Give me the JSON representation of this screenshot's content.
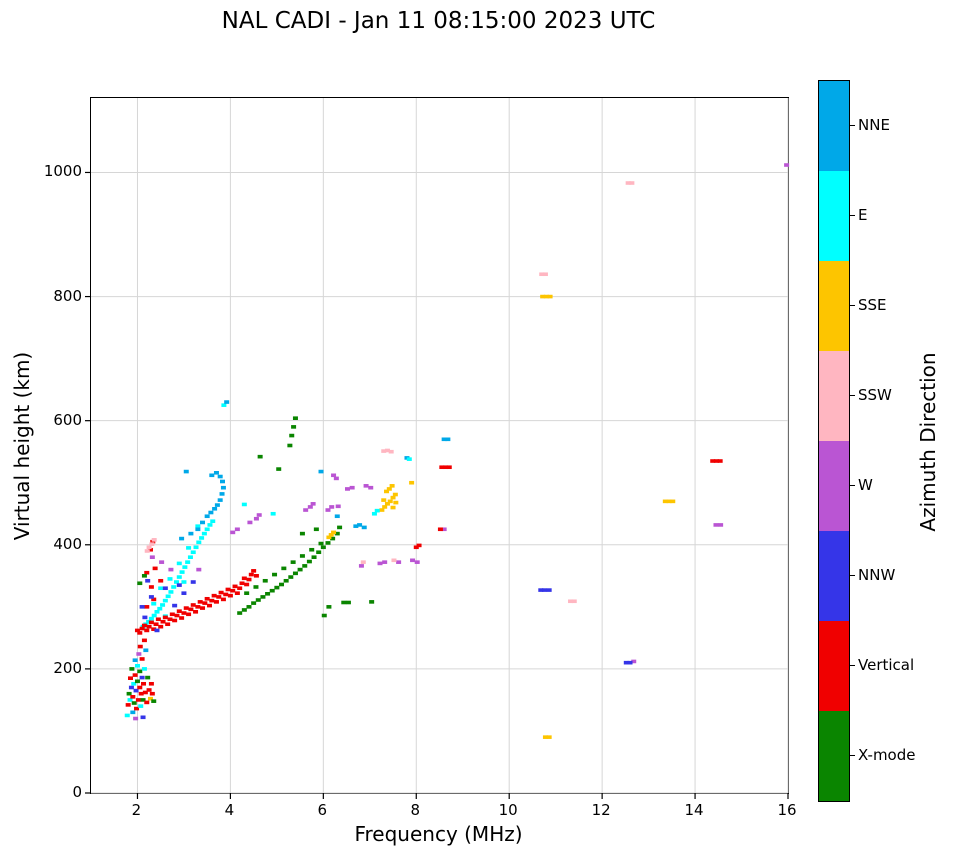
{
  "chart_data": {
    "type": "scatter",
    "title": "NAL CADI - Jan 11 08:15:00 2023 UTC",
    "xlabel": "Frequency (MHz)",
    "ylabel": "Virtual height (km)",
    "colorbar_label": "Azimuth Direction",
    "xlim": [
      1,
      16
    ],
    "ylim": [
      0,
      1120
    ],
    "x_ticks": [
      2,
      4,
      6,
      8,
      10,
      12,
      14,
      16
    ],
    "y_ticks": [
      0,
      200,
      400,
      600,
      800,
      1000
    ],
    "grid": true,
    "legend_position": "right-colorbar",
    "categories": [
      {
        "name": "NNE",
        "color": "#00a8e8"
      },
      {
        "name": "E",
        "color": "#00ffff"
      },
      {
        "name": "SSE",
        "color": "#fdc500"
      },
      {
        "name": "SSW",
        "color": "#ffb6c1"
      },
      {
        "name": "W",
        "color": "#ba55d3"
      },
      {
        "name": "NNW",
        "color": "#3535e8"
      },
      {
        "name": "Vertical",
        "color": "#f00000"
      },
      {
        "name": "X-mode",
        "color": "#0a8500"
      }
    ],
    "points": [
      [
        1.78,
        125,
        1
      ],
      [
        1.8,
        142,
        6
      ],
      [
        1.82,
        160,
        7
      ],
      [
        1.84,
        150,
        1
      ],
      [
        1.85,
        185,
        6
      ],
      [
        1.87,
        170,
        5
      ],
      [
        1.88,
        200,
        7
      ],
      [
        1.9,
        130,
        0
      ],
      [
        1.9,
        155,
        6
      ],
      [
        1.92,
        176,
        1
      ],
      [
        1.93,
        145,
        7
      ],
      [
        1.95,
        190,
        6
      ],
      [
        1.95,
        214,
        0
      ],
      [
        1.97,
        165,
        5
      ],
      [
        1.98,
        136,
        6
      ],
      [
        2.0,
        180,
        7
      ],
      [
        2.0,
        205,
        1
      ],
      [
        2.02,
        150,
        6
      ],
      [
        2.03,
        224,
        4
      ],
      [
        2.05,
        170,
        6
      ],
      [
        2.05,
        196,
        7
      ],
      [
        2.07,
        140,
        1
      ],
      [
        2.08,
        160,
        6
      ],
      [
        2.1,
        186,
        5
      ],
      [
        2.1,
        216,
        6
      ],
      [
        2.12,
        150,
        7
      ],
      [
        2.13,
        176,
        6
      ],
      [
        2.15,
        200,
        1
      ],
      [
        2.17,
        162,
        6
      ],
      [
        2.18,
        230,
        0
      ],
      [
        2.2,
        146,
        6
      ],
      [
        2.22,
        186,
        7
      ],
      [
        2.25,
        166,
        6
      ],
      [
        2.28,
        152,
        2
      ],
      [
        2.3,
        176,
        6
      ],
      [
        2.12,
        122,
        5
      ],
      [
        1.96,
        120,
        4
      ],
      [
        2.06,
        236,
        6
      ],
      [
        2.32,
        160,
        6
      ],
      [
        2.35,
        148,
        7
      ],
      [
        2.12,
        268,
        1
      ],
      [
        2.18,
        272,
        1
      ],
      [
        2.24,
        276,
        1
      ],
      [
        2.3,
        281,
        1
      ],
      [
        2.36,
        286,
        1
      ],
      [
        2.42,
        292,
        1
      ],
      [
        2.48,
        297,
        1
      ],
      [
        2.54,
        303,
        1
      ],
      [
        2.6,
        310,
        1
      ],
      [
        2.66,
        317,
        1
      ],
      [
        2.72,
        324,
        1
      ],
      [
        2.78,
        332,
        1
      ],
      [
        2.84,
        340,
        1
      ],
      [
        2.9,
        348,
        1
      ],
      [
        2.96,
        356,
        1
      ],
      [
        3.02,
        364,
        1
      ],
      [
        3.08,
        372,
        1
      ],
      [
        3.14,
        380,
        1
      ],
      [
        3.2,
        388,
        1
      ],
      [
        3.26,
        396,
        1
      ],
      [
        3.32,
        404,
        1
      ],
      [
        3.38,
        411,
        1
      ],
      [
        3.44,
        418,
        1
      ],
      [
        3.5,
        425,
        1
      ],
      [
        3.56,
        432,
        1
      ],
      [
        3.62,
        438,
        1
      ],
      [
        2.5,
        330,
        1
      ],
      [
        2.7,
        345,
        1
      ],
      [
        2.9,
        370,
        1
      ],
      [
        3.1,
        395,
        1
      ],
      [
        2.35,
        305,
        1
      ],
      [
        2.6,
        285,
        1
      ],
      [
        3.3,
        430,
        1
      ],
      [
        3.0,
        340,
        1
      ],
      [
        3.3,
        425,
        0
      ],
      [
        3.4,
        436,
        0
      ],
      [
        3.5,
        446,
        0
      ],
      [
        3.58,
        452,
        0
      ],
      [
        3.66,
        458,
        0
      ],
      [
        3.72,
        464,
        0
      ],
      [
        3.78,
        472,
        0
      ],
      [
        3.82,
        482,
        0
      ],
      [
        3.85,
        492,
        0
      ],
      [
        3.83,
        502,
        0
      ],
      [
        3.78,
        510,
        0
      ],
      [
        3.7,
        516,
        0
      ],
      [
        3.6,
        512,
        0
      ],
      [
        3.05,
        518,
        0
      ],
      [
        3.86,
        625,
        1
      ],
      [
        3.92,
        630,
        0
      ],
      [
        2.95,
        410,
        0
      ],
      [
        3.15,
        418,
        0
      ],
      [
        2.0,
        262,
        6
      ],
      [
        2.05,
        258,
        6
      ],
      [
        2.1,
        265,
        6
      ],
      [
        2.15,
        270,
        6
      ],
      [
        2.2,
        262,
        6
      ],
      [
        2.25,
        268,
        6
      ],
      [
        2.3,
        275,
        6
      ],
      [
        2.35,
        264,
        6
      ],
      [
        2.4,
        272,
        6
      ],
      [
        2.45,
        280,
        6
      ],
      [
        2.5,
        268,
        6
      ],
      [
        2.55,
        276,
        6
      ],
      [
        2.6,
        283,
        6
      ],
      [
        2.65,
        272,
        6
      ],
      [
        2.7,
        280,
        6
      ],
      [
        2.75,
        288,
        6
      ],
      [
        2.8,
        278,
        6
      ],
      [
        2.85,
        286,
        6
      ],
      [
        2.9,
        293,
        6
      ],
      [
        2.95,
        282,
        6
      ],
      [
        3.0,
        290,
        6
      ],
      [
        3.05,
        298,
        6
      ],
      [
        3.1,
        288,
        6
      ],
      [
        3.15,
        296,
        6
      ],
      [
        3.2,
        303,
        6
      ],
      [
        3.25,
        292,
        6
      ],
      [
        3.3,
        300,
        6
      ],
      [
        3.35,
        308,
        6
      ],
      [
        3.4,
        298,
        6
      ],
      [
        3.45,
        306,
        6
      ],
      [
        3.5,
        313,
        6
      ],
      [
        3.55,
        302,
        6
      ],
      [
        3.6,
        310,
        6
      ],
      [
        3.65,
        318,
        6
      ],
      [
        3.7,
        308,
        6
      ],
      [
        3.75,
        316,
        6
      ],
      [
        3.8,
        323,
        6
      ],
      [
        3.85,
        312,
        6
      ],
      [
        3.9,
        320,
        6
      ],
      [
        3.95,
        328,
        6
      ],
      [
        4.0,
        318,
        6
      ],
      [
        4.05,
        326,
        6
      ],
      [
        4.1,
        333,
        6
      ],
      [
        4.15,
        322,
        6
      ],
      [
        4.2,
        330,
        6
      ],
      [
        4.25,
        338,
        6
      ],
      [
        4.3,
        346,
        6
      ],
      [
        4.35,
        336,
        6
      ],
      [
        4.4,
        344,
        6
      ],
      [
        4.45,
        352,
        6
      ],
      [
        2.2,
        300,
        6
      ],
      [
        2.35,
        312,
        6
      ],
      [
        2.3,
        332,
        6
      ],
      [
        2.5,
        342,
        6
      ],
      [
        2.2,
        355,
        6
      ],
      [
        2.38,
        362,
        6
      ],
      [
        2.28,
        392,
        6
      ],
      [
        2.33,
        405,
        6
      ],
      [
        2.15,
        246,
        6
      ],
      [
        4.5,
        358,
        6
      ],
      [
        4.56,
        350,
        6
      ],
      [
        2.1,
        300,
        5
      ],
      [
        2.3,
        316,
        5
      ],
      [
        2.6,
        330,
        5
      ],
      [
        2.22,
        342,
        5
      ],
      [
        2.8,
        302,
        5
      ],
      [
        3.0,
        322,
        5
      ],
      [
        2.42,
        262,
        5
      ],
      [
        2.16,
        283,
        5
      ],
      [
        3.2,
        340,
        5
      ],
      [
        2.9,
        335,
        5
      ],
      [
        2.32,
        380,
        4
      ],
      [
        2.52,
        372,
        4
      ],
      [
        3.32,
        360,
        4
      ],
      [
        2.72,
        360,
        4
      ],
      [
        4.42,
        436,
        4
      ],
      [
        4.56,
        442,
        4
      ],
      [
        4.62,
        448,
        4
      ],
      [
        4.05,
        420,
        4
      ],
      [
        4.15,
        425,
        4
      ],
      [
        2.25,
        396,
        3
      ],
      [
        2.31,
        401,
        3
      ],
      [
        2.36,
        408,
        3
      ],
      [
        2.21,
        390,
        3
      ],
      [
        4.2,
        290,
        7
      ],
      [
        4.3,
        295,
        7
      ],
      [
        4.4,
        300,
        7
      ],
      [
        4.5,
        306,
        7
      ],
      [
        4.6,
        311,
        7
      ],
      [
        4.7,
        316,
        7
      ],
      [
        4.8,
        321,
        7
      ],
      [
        4.9,
        326,
        7
      ],
      [
        5.0,
        331,
        7
      ],
      [
        5.1,
        336,
        7
      ],
      [
        5.2,
        342,
        7
      ],
      [
        5.3,
        348,
        7
      ],
      [
        5.4,
        354,
        7
      ],
      [
        5.5,
        360,
        7
      ],
      [
        5.6,
        366,
        7
      ],
      [
        5.7,
        373,
        7
      ],
      [
        5.8,
        380,
        7
      ],
      [
        5.9,
        388,
        7
      ],
      [
        6.0,
        396,
        7
      ],
      [
        6.1,
        403,
        7
      ],
      [
        6.2,
        410,
        7
      ],
      [
        6.3,
        418,
        7
      ],
      [
        4.55,
        332,
        7
      ],
      [
        4.75,
        342,
        7
      ],
      [
        4.95,
        352,
        7
      ],
      [
        5.15,
        362,
        7
      ],
      [
        5.35,
        372,
        7
      ],
      [
        5.55,
        382,
        7
      ],
      [
        5.75,
        392,
        7
      ],
      [
        5.95,
        402,
        7
      ],
      [
        4.35,
        322,
        7
      ],
      [
        5.28,
        560,
        7
      ],
      [
        5.32,
        576,
        7
      ],
      [
        5.36,
        590,
        7
      ],
      [
        5.4,
        604,
        7
      ],
      [
        4.64,
        542,
        7
      ],
      [
        5.04,
        522,
        7
      ],
      [
        6.44,
        307,
        7
      ],
      [
        6.54,
        307,
        7
      ],
      [
        6.02,
        286,
        7
      ],
      [
        7.04,
        308,
        7
      ],
      [
        6.12,
        300,
        7
      ],
      [
        2.05,
        338,
        7
      ],
      [
        2.15,
        350,
        7
      ],
      [
        5.55,
        418,
        7
      ],
      [
        5.85,
        425,
        7
      ],
      [
        6.35,
        428,
        7
      ],
      [
        5.62,
        456,
        4
      ],
      [
        5.72,
        461,
        4
      ],
      [
        5.78,
        466,
        4
      ],
      [
        6.1,
        456,
        4
      ],
      [
        6.18,
        461,
        4
      ],
      [
        6.22,
        512,
        4
      ],
      [
        6.28,
        507,
        4
      ],
      [
        6.52,
        490,
        4
      ],
      [
        6.62,
        492,
        4
      ],
      [
        6.92,
        495,
        4
      ],
      [
        7.02,
        492,
        4
      ],
      [
        6.32,
        462,
        4
      ],
      [
        7.22,
        370,
        4
      ],
      [
        7.32,
        372,
        4
      ],
      [
        6.82,
        366,
        4
      ],
      [
        7.62,
        372,
        4
      ],
      [
        7.92,
        375,
        4
      ],
      [
        8.02,
        372,
        4
      ],
      [
        8.6,
        425,
        4
      ],
      [
        14.45,
        432,
        4
      ],
      [
        14.55,
        432,
        4
      ],
      [
        15.97,
        1012,
        4
      ],
      [
        12.68,
        212,
        4
      ],
      [
        7.26,
        456,
        2
      ],
      [
        7.32,
        461,
        2
      ],
      [
        7.38,
        466,
        2
      ],
      [
        7.44,
        470,
        2
      ],
      [
        7.5,
        476,
        2
      ],
      [
        7.55,
        481,
        2
      ],
      [
        7.36,
        486,
        2
      ],
      [
        7.42,
        490,
        2
      ],
      [
        7.48,
        495,
        2
      ],
      [
        7.3,
        472,
        2
      ],
      [
        7.56,
        468,
        2
      ],
      [
        7.5,
        460,
        2
      ],
      [
        7.9,
        500,
        2
      ],
      [
        6.12,
        412,
        2
      ],
      [
        6.22,
        420,
        2
      ],
      [
        6.17,
        416,
        2
      ],
      [
        10.72,
        800,
        2
      ],
      [
        10.8,
        800,
        2
      ],
      [
        10.88,
        800,
        2
      ],
      [
        10.78,
        90,
        2
      ],
      [
        10.86,
        90,
        2
      ],
      [
        13.36,
        470,
        2
      ],
      [
        13.44,
        470,
        2
      ],
      [
        13.52,
        470,
        2
      ],
      [
        7.3,
        551,
        3
      ],
      [
        7.38,
        552,
        3
      ],
      [
        7.46,
        550,
        3
      ],
      [
        6.86,
        372,
        3
      ],
      [
        7.52,
        375,
        3
      ],
      [
        10.7,
        836,
        3
      ],
      [
        10.78,
        836,
        3
      ],
      [
        11.32,
        309,
        3
      ],
      [
        11.4,
        309,
        3
      ],
      [
        12.56,
        983,
        3
      ],
      [
        12.64,
        983,
        3
      ],
      [
        8.6,
        570,
        0
      ],
      [
        8.68,
        570,
        0
      ],
      [
        7.8,
        540,
        0
      ],
      [
        6.3,
        446,
        0
      ],
      [
        6.7,
        430,
        0
      ],
      [
        6.78,
        432,
        0
      ],
      [
        6.88,
        428,
        0
      ],
      [
        7.1,
        450,
        1
      ],
      [
        7.16,
        455,
        1
      ],
      [
        4.3,
        465,
        1
      ],
      [
        4.92,
        450,
        1
      ],
      [
        7.85,
        538,
        1
      ],
      [
        5.95,
        518,
        0
      ],
      [
        8.55,
        525,
        6
      ],
      [
        8.63,
        525,
        6
      ],
      [
        8.71,
        525,
        6
      ],
      [
        8.52,
        425,
        6
      ],
      [
        8.0,
        396,
        6
      ],
      [
        8.06,
        399,
        6
      ],
      [
        14.38,
        535,
        6
      ],
      [
        14.46,
        535,
        6
      ],
      [
        14.54,
        535,
        6
      ],
      [
        10.68,
        327,
        5
      ],
      [
        10.76,
        327,
        5
      ],
      [
        10.86,
        327,
        5
      ],
      [
        12.52,
        210,
        5
      ],
      [
        12.6,
        210,
        5
      ]
    ]
  }
}
